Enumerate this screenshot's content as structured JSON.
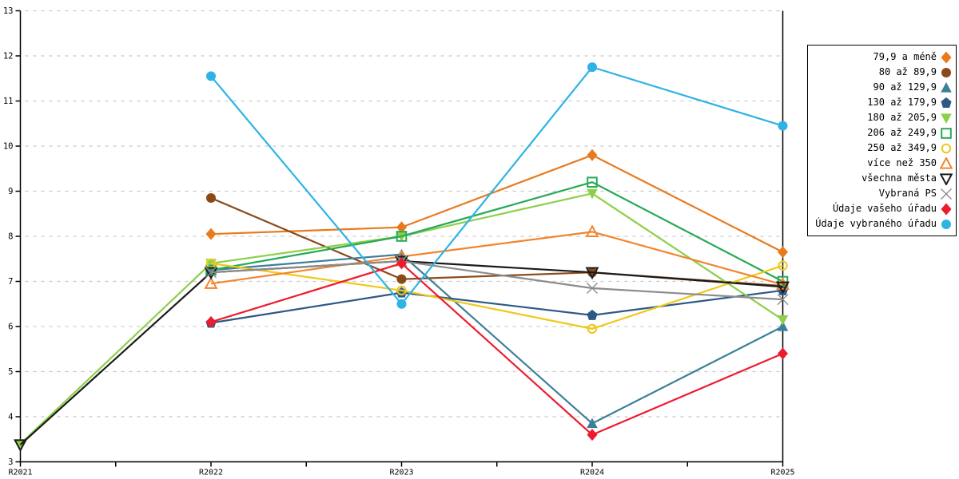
{
  "chart_data": {
    "type": "line",
    "title": "",
    "xlabel": "",
    "ylabel": "",
    "x_categories": [
      "R2021",
      "R2022",
      "R2023",
      "R2024",
      "R2025"
    ],
    "y_ticks": [
      3,
      4,
      5,
      6,
      7,
      8,
      9,
      10,
      11,
      12,
      13
    ],
    "ylim": [
      3,
      13
    ],
    "grid": "horizontal-dashed",
    "legend_position": "right",
    "series": [
      {
        "name": "79,9 a méně",
        "color": "#e87a1e",
        "marker": "diamond",
        "filled": true,
        "values": [
          null,
          8.05,
          8.2,
          9.8,
          7.65
        ]
      },
      {
        "name": "80 až 89,9",
        "color": "#8a4a18",
        "marker": "circle",
        "filled": true,
        "values": [
          null,
          8.85,
          7.05,
          7.2,
          6.9
        ]
      },
      {
        "name": "90 až 129,9",
        "color": "#3c7f99",
        "marker": "triangle-up",
        "filled": true,
        "values": [
          null,
          7.25,
          7.6,
          3.85,
          6.0
        ]
      },
      {
        "name": "130 až 179,9",
        "color": "#2d5986",
        "marker": "pentagon",
        "filled": true,
        "values": [
          null,
          6.08,
          6.75,
          6.25,
          6.8
        ]
      },
      {
        "name": "180 až 205,9",
        "color": "#8cd04a",
        "marker": "triangle-down",
        "filled": true,
        "values": [
          3.4,
          7.4,
          8.0,
          8.95,
          6.15
        ]
      },
      {
        "name": "206 až 249,9",
        "color": "#28a958",
        "marker": "square",
        "filled": false,
        "values": [
          null,
          7.25,
          8.0,
          9.2,
          7.0
        ]
      },
      {
        "name": "250 až 349,9",
        "color": "#f0c818",
        "marker": "circle",
        "filled": false,
        "values": [
          null,
          7.4,
          6.8,
          5.95,
          7.35
        ]
      },
      {
        "name": "více než 350",
        "color": "#f2842c",
        "marker": "triangle-up",
        "filled": false,
        "values": [
          null,
          6.95,
          7.55,
          8.1,
          6.93
        ]
      },
      {
        "name": "všechna města",
        "color": "#1a1a1a",
        "marker": "triangle-down",
        "filled": false,
        "values": [
          3.38,
          7.2,
          7.45,
          7.2,
          6.88
        ]
      },
      {
        "name": "Vybraná PS",
        "color": "#8c8c8c",
        "marker": "x",
        "filled": false,
        "values": [
          null,
          7.2,
          7.45,
          6.85,
          6.6
        ]
      },
      {
        "name": "Údaje vašeho úřadu",
        "color": "#ed1b2e",
        "marker": "diamond",
        "filled": true,
        "values": [
          null,
          6.1,
          7.4,
          3.6,
          5.4
        ]
      },
      {
        "name": "Údaje vybraného úřadu",
        "color": "#2db3e6",
        "marker": "circle",
        "filled": true,
        "values": [
          null,
          11.55,
          6.5,
          11.75,
          10.45
        ]
      }
    ],
    "colors": {
      "axis": "#000000",
      "gridline": "#c8c8c8",
      "background": "#ffffff"
    }
  }
}
